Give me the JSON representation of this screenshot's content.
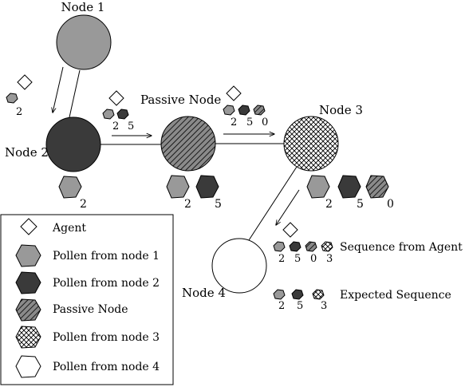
{
  "nodes": {
    "node1": {
      "label": "Node 1",
      "fill": "#999999"
    },
    "node2": {
      "label": "Node 2",
      "fill": "#3a3a3a"
    },
    "passive": {
      "label": "Passive Node"
    },
    "node3": {
      "label": "Node 3"
    },
    "node4": {
      "label": "Node 4",
      "fill": "#ffffff"
    }
  },
  "sequences": {
    "n1_out": [
      "2"
    ],
    "n2_out": [
      "2",
      "5"
    ],
    "passive_out": [
      "2",
      "5",
      "0"
    ],
    "node2_hold": [
      "2"
    ],
    "passive_hold": [
      "2",
      "5"
    ],
    "node3_hold": [
      "2",
      "5",
      "0"
    ],
    "from_agent": {
      "label": "Sequence from Agent",
      "digits": [
        "2",
        "5",
        "0",
        "3"
      ]
    },
    "expected": {
      "label": "Expected Sequence",
      "digits": [
        "2",
        "5",
        "3"
      ]
    }
  },
  "legend": {
    "items": [
      {
        "label": "Agent",
        "icon": "diamond-icon"
      },
      {
        "label": "Pollen from node 1",
        "icon": "hexagon-gray-icon"
      },
      {
        "label": "Pollen from node 2",
        "icon": "hexagon-dark-icon"
      },
      {
        "label": "Passive Node",
        "icon": "hexagon-hatched-icon"
      },
      {
        "label": "Pollen from node 3",
        "icon": "hexagon-crosshatch-icon"
      },
      {
        "label": "Pollen from node 4",
        "icon": "hexagon-white-icon"
      }
    ]
  },
  "colors": {
    "gray": "#999999",
    "dark": "#3a3a3a",
    "stroke": "#000000"
  }
}
